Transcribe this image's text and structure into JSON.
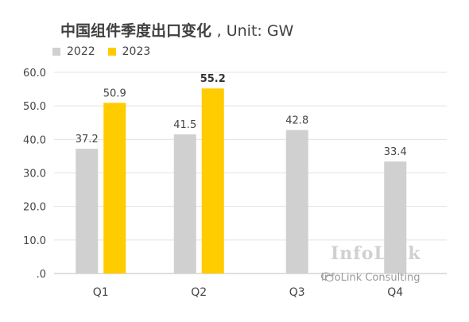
{
  "chart_data": {
    "type": "bar",
    "title": "中国组件季度出口变化",
    "subtitle": ", Unit: GW",
    "categories": [
      "Q1",
      "Q2",
      "Q3",
      "Q4"
    ],
    "series": [
      {
        "name": "2022",
        "values": [
          37.2,
          41.5,
          42.8,
          33.4
        ],
        "labels": [
          "37.2",
          "41.5",
          "42.8",
          "33.4"
        ],
        "color": "#d0d0d0"
      },
      {
        "name": "2023",
        "values": [
          50.9,
          55.2,
          null,
          null
        ],
        "labels": [
          "50.9",
          "55.2",
          "",
          ""
        ],
        "color": "#ffcc00",
        "bold_index": 1
      }
    ],
    "yticks": [
      0,
      10,
      20,
      30,
      40,
      50,
      60
    ],
    "ytick_labels": [
      ".0",
      "10.0",
      "20.0",
      "30.0",
      "40.0",
      "50.0",
      "60.0"
    ],
    "ylim": [
      0,
      60
    ],
    "grid": true,
    "legend_position": "top-left"
  },
  "watermark": {
    "main": "InfoLink",
    "sub": "InfoLink Consulting",
    "icon": "wechat-icon"
  }
}
